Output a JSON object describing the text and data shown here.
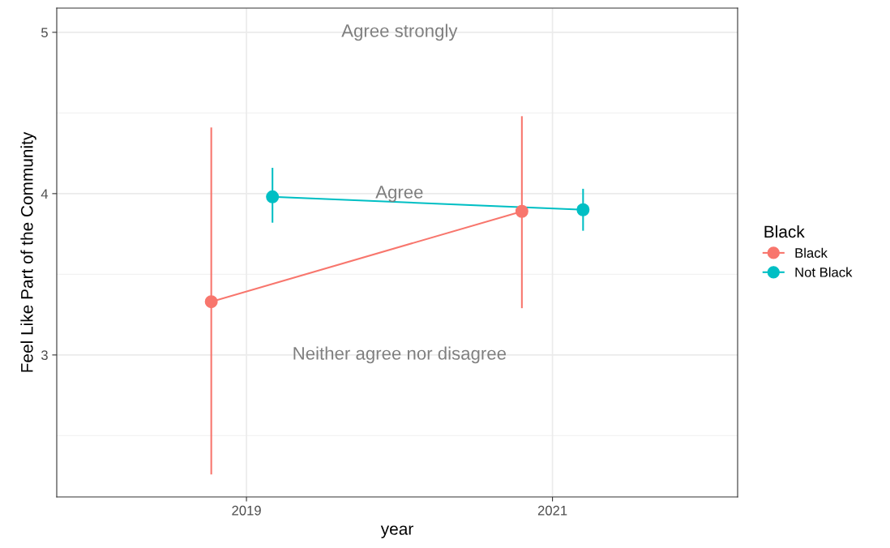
{
  "chart_data": {
    "type": "line",
    "xlabel": "year",
    "ylabel": "Feel Like Part of the Community",
    "legend_title": "Black",
    "legend": "right",
    "marker": "circle",
    "grid": true,
    "xlim": [
      2017.76,
      2022.21
    ],
    "xticks": [
      2019,
      2021
    ],
    "ylim": [
      2.12,
      5.15
    ],
    "yticks": [
      3,
      4,
      5
    ],
    "series": [
      {
        "name": "Black",
        "color": "#f8766d",
        "x": [
          2018.77,
          2020.8
        ],
        "values": [
          3.33,
          3.89
        ],
        "errors": [
          [
            2.26,
            4.41
          ],
          [
            3.29,
            4.48
          ]
        ]
      },
      {
        "name": "Not Black",
        "color": "#00bfc4",
        "x": [
          2019.17,
          2021.2
        ],
        "values": [
          3.98,
          3.9
        ],
        "errors": [
          [
            3.82,
            4.16
          ],
          [
            3.77,
            4.03
          ]
        ]
      }
    ],
    "annotations": [
      "Agree strongly",
      "Agree",
      "Neither agree nor disagree"
    ]
  }
}
